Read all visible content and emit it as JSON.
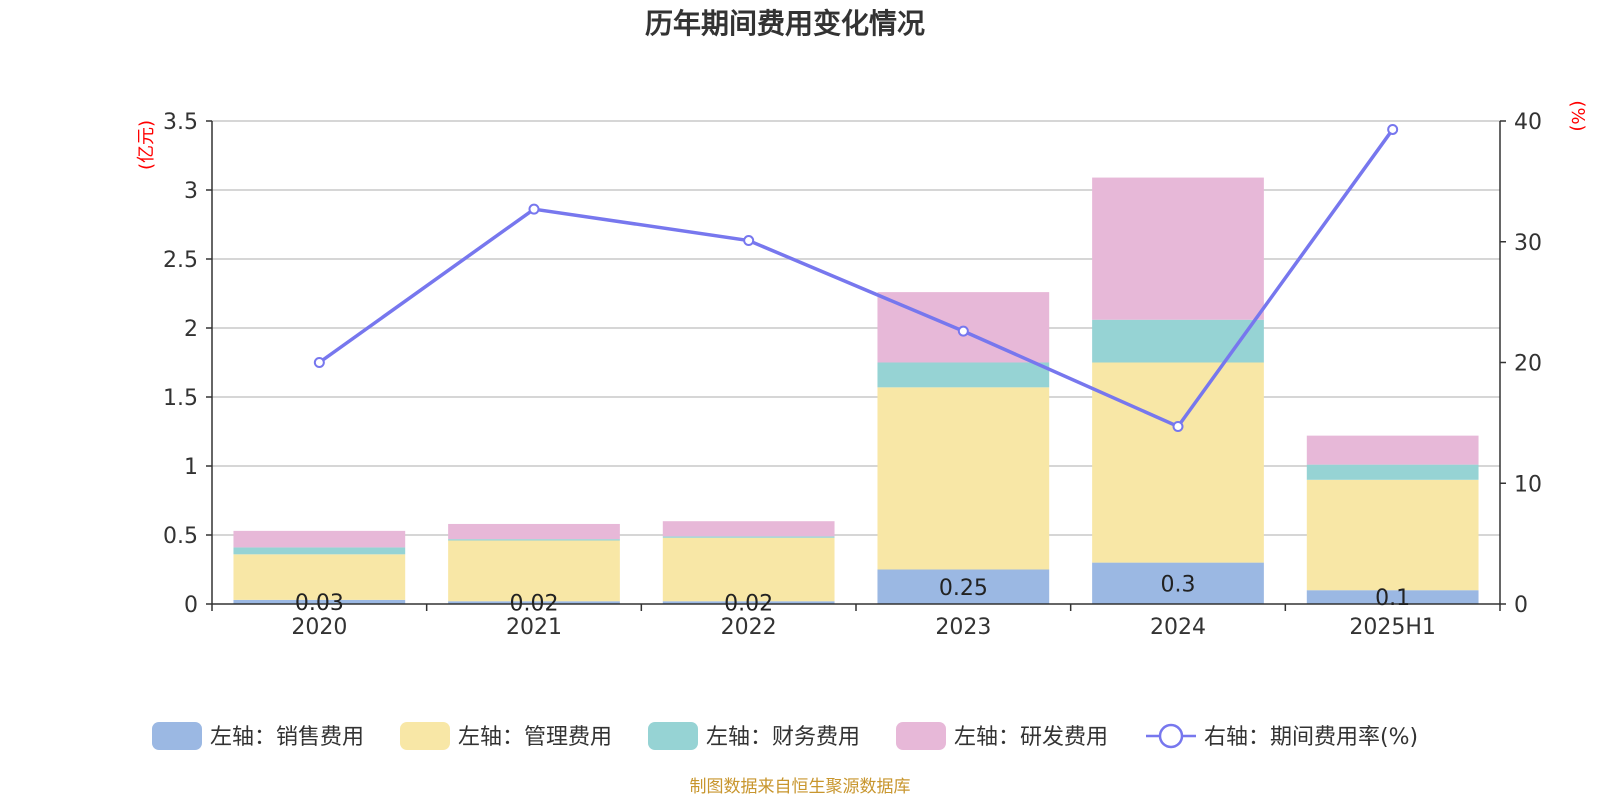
{
  "chart_data": {
    "type": "bar",
    "title": "历年期间费用变化情况",
    "categories": [
      "2020",
      "2021",
      "2022",
      "2023",
      "2024",
      "2025H1"
    ],
    "left_axis": {
      "unit": "(亿元)",
      "ylim": [
        0,
        3.5
      ],
      "ticks": [
        "0",
        "0.5",
        "1",
        "1.5",
        "2",
        "2.5",
        "3",
        "3.5"
      ]
    },
    "right_axis": {
      "unit": "(%)",
      "ylim": [
        0,
        40
      ],
      "ticks": [
        "0",
        "10",
        "20",
        "30",
        "40"
      ]
    },
    "series": [
      {
        "name": "左轴：销售费用",
        "type": "bar",
        "axis": "left",
        "color": "#9bb8e3",
        "values": [
          0.03,
          0.02,
          0.02,
          0.25,
          0.3,
          0.1
        ],
        "labels": [
          "0.03",
          "0.02",
          "0.02",
          "0.25",
          "0.3",
          "0.1"
        ]
      },
      {
        "name": "左轴：管理费用",
        "type": "bar",
        "axis": "left",
        "color": "#f8e7a6",
        "values": [
          0.33,
          0.44,
          0.46,
          1.32,
          1.45,
          0.8
        ]
      },
      {
        "name": "左轴：财务费用",
        "type": "bar",
        "axis": "left",
        "color": "#96d3d4",
        "values": [
          0.05,
          0.01,
          0.01,
          0.18,
          0.31,
          0.11
        ]
      },
      {
        "name": "左轴：研发费用",
        "type": "bar",
        "axis": "left",
        "color": "#e7b8d8",
        "values": [
          0.12,
          0.11,
          0.11,
          0.51,
          1.03,
          0.21
        ]
      },
      {
        "name": "右轴：期间费用率(%)",
        "type": "line",
        "axis": "right",
        "color": "#7777ee",
        "values": [
          20.0,
          32.7,
          30.1,
          22.6,
          14.7,
          39.3
        ]
      }
    ],
    "grid": true,
    "legend_position": "bottom"
  },
  "source_note": "制图数据来自恒生聚源数据库"
}
